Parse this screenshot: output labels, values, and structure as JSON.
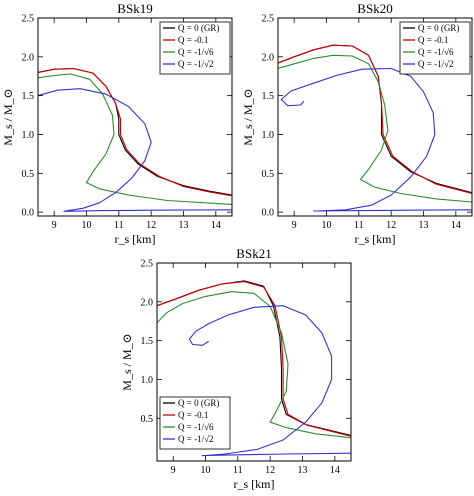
{
  "chart_data": [
    {
      "type": "line",
      "title": "BSk19",
      "xlabel": "r_s [km]",
      "ylabel": "M_s / M_⊙",
      "xlim": [
        8.5,
        14.5
      ],
      "ylim": [
        -0.05,
        2.5
      ],
      "xticks": [
        "9",
        "10",
        "11",
        "12",
        "13",
        "14"
      ],
      "yticks": [
        "0.0",
        "0.5",
        "1.0",
        "1.5",
        "2.0",
        "2.5"
      ],
      "legend_position": "top-right",
      "series": [
        {
          "name": "Q = 0 (GR)",
          "color": "#000000",
          "points": [
            [
              8.5,
              1.8
            ],
            [
              9.0,
              1.84
            ],
            [
              9.6,
              1.85
            ],
            [
              10.2,
              1.79
            ],
            [
              10.6,
              1.62
            ],
            [
              10.9,
              1.4
            ],
            [
              11.0,
              1.2
            ],
            [
              11.0,
              1.0
            ],
            [
              11.2,
              0.8
            ],
            [
              11.6,
              0.62
            ],
            [
              12.2,
              0.46
            ],
            [
              13.0,
              0.34
            ],
            [
              13.8,
              0.27
            ],
            [
              14.5,
              0.22
            ]
          ]
        },
        {
          "name": "Q = -0.1",
          "color": "#cc0000",
          "points": [
            [
              8.5,
              1.8
            ],
            [
              9.0,
              1.84
            ],
            [
              9.6,
              1.85
            ],
            [
              10.2,
              1.79
            ],
            [
              10.6,
              1.62
            ],
            [
              10.9,
              1.4
            ],
            [
              11.05,
              1.2
            ],
            [
              11.05,
              1.0
            ],
            [
              11.25,
              0.8
            ],
            [
              11.65,
              0.62
            ],
            [
              12.25,
              0.46
            ],
            [
              13.0,
              0.33
            ],
            [
              13.8,
              0.26
            ],
            [
              14.5,
              0.21
            ]
          ]
        },
        {
          "name": "Q = -1/√6",
          "color": "#2e8b2e",
          "points": [
            [
              8.5,
              1.73
            ],
            [
              9.0,
              1.76
            ],
            [
              9.5,
              1.78
            ],
            [
              10.1,
              1.71
            ],
            [
              10.5,
              1.52
            ],
            [
              10.8,
              1.25
            ],
            [
              10.85,
              1.0
            ],
            [
              10.6,
              0.75
            ],
            [
              10.2,
              0.52
            ],
            [
              10.0,
              0.38
            ],
            [
              10.4,
              0.3
            ],
            [
              11.3,
              0.22
            ],
            [
              12.5,
              0.15
            ],
            [
              14.5,
              0.1
            ]
          ]
        },
        {
          "name": "Q = -1/√2",
          "color": "#3333cc",
          "points": [
            [
              8.5,
              1.5
            ],
            [
              9.1,
              1.57
            ],
            [
              9.8,
              1.59
            ],
            [
              10.6,
              1.52
            ],
            [
              11.3,
              1.36
            ],
            [
              11.8,
              1.14
            ],
            [
              12.0,
              0.9
            ],
            [
              11.8,
              0.66
            ],
            [
              11.4,
              0.44
            ],
            [
              10.9,
              0.25
            ],
            [
              10.4,
              0.12
            ],
            [
              9.9,
              0.05
            ],
            [
              9.3,
              0.01
            ],
            [
              9.4,
              0.01
            ],
            [
              10.5,
              0.02
            ],
            [
              12.0,
              0.025
            ],
            [
              14.5,
              0.03
            ]
          ]
        }
      ]
    },
    {
      "type": "line",
      "title": "BSk20",
      "xlabel": "r_s [km]",
      "ylabel": "M_s / M_⊙",
      "xlim": [
        8.5,
        14.5
      ],
      "ylim": [
        -0.05,
        2.5
      ],
      "xticks": [
        "9",
        "10",
        "11",
        "12",
        "13",
        "14"
      ],
      "yticks": [
        "0.0",
        "0.5",
        "1.0",
        "1.5",
        "2.0",
        "2.5"
      ],
      "legend_position": "top-right",
      "series": [
        {
          "name": "Q = 0 (GR)",
          "color": "#000000",
          "points": [
            [
              8.5,
              1.92
            ],
            [
              9.0,
              2.0
            ],
            [
              9.6,
              2.09
            ],
            [
              10.2,
              2.15
            ],
            [
              10.8,
              2.14
            ],
            [
              11.3,
              2.02
            ],
            [
              11.6,
              1.75
            ],
            [
              11.7,
              1.4
            ],
            [
              11.7,
              1.0
            ],
            [
              12.0,
              0.72
            ],
            [
              12.6,
              0.52
            ],
            [
              13.4,
              0.37
            ],
            [
              14.5,
              0.25
            ]
          ]
        },
        {
          "name": "Q = -0.1",
          "color": "#cc0000",
          "points": [
            [
              8.5,
              1.92
            ],
            [
              9.0,
              2.0
            ],
            [
              9.6,
              2.09
            ],
            [
              10.2,
              2.15
            ],
            [
              10.8,
              2.14
            ],
            [
              11.3,
              2.02
            ],
            [
              11.6,
              1.75
            ],
            [
              11.7,
              1.4
            ],
            [
              11.75,
              1.0
            ],
            [
              12.05,
              0.72
            ],
            [
              12.65,
              0.52
            ],
            [
              13.4,
              0.36
            ],
            [
              14.5,
              0.24
            ]
          ]
        },
        {
          "name": "Q = -1/√6",
          "color": "#2e8b2e",
          "points": [
            [
              8.5,
              1.85
            ],
            [
              9.0,
              1.91
            ],
            [
              9.6,
              1.98
            ],
            [
              10.2,
              2.02
            ],
            [
              10.8,
              2.01
            ],
            [
              11.3,
              1.91
            ],
            [
              11.6,
              1.68
            ],
            [
              11.8,
              1.38
            ],
            [
              11.9,
              1.05
            ],
            [
              11.7,
              0.8
            ],
            [
              11.3,
              0.55
            ],
            [
              11.05,
              0.42
            ],
            [
              11.5,
              0.32
            ],
            [
              12.3,
              0.24
            ],
            [
              13.4,
              0.17
            ],
            [
              14.5,
              0.13
            ]
          ]
        },
        {
          "name": "Q = -1/√2",
          "color": "#3333cc",
          "points": [
            [
              9.3,
              1.43
            ],
            [
              9.2,
              1.38
            ],
            [
              8.8,
              1.37
            ],
            [
              8.6,
              1.45
            ],
            [
              8.9,
              1.56
            ],
            [
              9.6,
              1.66
            ],
            [
              10.3,
              1.76
            ],
            [
              11.1,
              1.84
            ],
            [
              12.0,
              1.85
            ],
            [
              12.6,
              1.75
            ],
            [
              13.0,
              1.55
            ],
            [
              13.3,
              1.28
            ],
            [
              13.35,
              1.0
            ],
            [
              13.1,
              0.72
            ],
            [
              12.6,
              0.45
            ],
            [
              12.0,
              0.22
            ],
            [
              11.4,
              0.09
            ],
            [
              10.6,
              0.03
            ],
            [
              9.7,
              0.015
            ],
            [
              9.6,
              0.015
            ],
            [
              11.0,
              0.02
            ],
            [
              12.5,
              0.025
            ],
            [
              14.5,
              0.03
            ]
          ]
        }
      ]
    },
    {
      "type": "line",
      "title": "BSk21",
      "xlabel": "r_s [km]",
      "ylabel": "M_s / M_⊙",
      "xlim": [
        8.5,
        14.5
      ],
      "ylim": [
        -0.05,
        2.5
      ],
      "xticks": [
        "9",
        "10",
        "11",
        "12",
        "13",
        "14"
      ],
      "yticks": [
        "0.5",
        "1.0",
        "1.5",
        "2.0",
        "2.5"
      ],
      "legend_position": "bottom-left",
      "series": [
        {
          "name": "Q = 0 (GR)",
          "color": "#000000",
          "points": [
            [
              8.5,
              1.95
            ],
            [
              9.1,
              2.04
            ],
            [
              9.8,
              2.15
            ],
            [
              10.5,
              2.23
            ],
            [
              11.2,
              2.27
            ],
            [
              11.8,
              2.2
            ],
            [
              12.1,
              1.95
            ],
            [
              12.3,
              1.55
            ],
            [
              12.35,
              1.15
            ],
            [
              12.35,
              0.75
            ],
            [
              12.5,
              0.55
            ],
            [
              13.1,
              0.42
            ],
            [
              14.5,
              0.28
            ]
          ]
        },
        {
          "name": "Q = -0.1",
          "color": "#cc0000",
          "points": [
            [
              8.5,
              1.95
            ],
            [
              9.1,
              2.04
            ],
            [
              9.8,
              2.15
            ],
            [
              10.5,
              2.23
            ],
            [
              11.2,
              2.26
            ],
            [
              11.8,
              2.19
            ],
            [
              12.15,
              1.95
            ],
            [
              12.35,
              1.55
            ],
            [
              12.4,
              1.15
            ],
            [
              12.4,
              0.75
            ],
            [
              12.55,
              0.55
            ],
            [
              13.15,
              0.41
            ],
            [
              14.5,
              0.27
            ]
          ]
        },
        {
          "name": "Q = -1/√6",
          "color": "#2e8b2e",
          "points": [
            [
              8.5,
              1.73
            ],
            [
              8.8,
              1.86
            ],
            [
              9.3,
              1.98
            ],
            [
              10.0,
              2.07
            ],
            [
              10.8,
              2.13
            ],
            [
              11.5,
              2.11
            ],
            [
              12.0,
              1.94
            ],
            [
              12.35,
              1.6
            ],
            [
              12.55,
              1.2
            ],
            [
              12.5,
              0.85
            ],
            [
              12.2,
              0.6
            ],
            [
              12.0,
              0.45
            ],
            [
              12.5,
              0.38
            ],
            [
              13.4,
              0.3
            ],
            [
              14.5,
              0.25
            ]
          ]
        },
        {
          "name": "Q = -1/√2",
          "color": "#3333cc",
          "points": [
            [
              10.1,
              1.49
            ],
            [
              9.9,
              1.44
            ],
            [
              9.6,
              1.45
            ],
            [
              9.5,
              1.52
            ],
            [
              9.7,
              1.62
            ],
            [
              10.1,
              1.72
            ],
            [
              10.7,
              1.83
            ],
            [
              11.5,
              1.93
            ],
            [
              12.4,
              1.95
            ],
            [
              13.1,
              1.83
            ],
            [
              13.6,
              1.6
            ],
            [
              13.9,
              1.3
            ],
            [
              13.9,
              1.0
            ],
            [
              13.6,
              0.7
            ],
            [
              13.1,
              0.45
            ],
            [
              12.4,
              0.22
            ],
            [
              11.6,
              0.1
            ],
            [
              10.6,
              0.04
            ],
            [
              10.0,
              0.02
            ],
            [
              9.9,
              0.02
            ],
            [
              11.0,
              0.03
            ],
            [
              12.5,
              0.04
            ],
            [
              14.5,
              0.05
            ]
          ]
        }
      ]
    }
  ]
}
